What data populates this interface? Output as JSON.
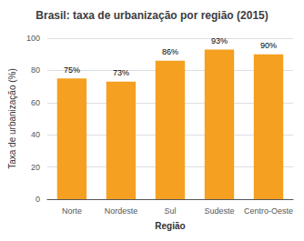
{
  "chart_data": {
    "type": "bar",
    "title": "Brasil: taxa de urbanização por região (2015)",
    "categories": [
      "Norte",
      "Nordeste",
      "Sul",
      "Sudeste",
      "Centro-Oeste"
    ],
    "values": [
      75,
      73,
      86,
      93,
      90
    ],
    "value_labels": [
      "75%",
      "73%",
      "86%",
      "93%",
      "90%"
    ],
    "color": "#F5A020",
    "xlabel": "Região",
    "ylabel": "Taxa de urbanização (%)",
    "ylim": [
      0,
      100
    ],
    "yticks": [
      0,
      20,
      40,
      60,
      80,
      100
    ],
    "grid": true
  }
}
